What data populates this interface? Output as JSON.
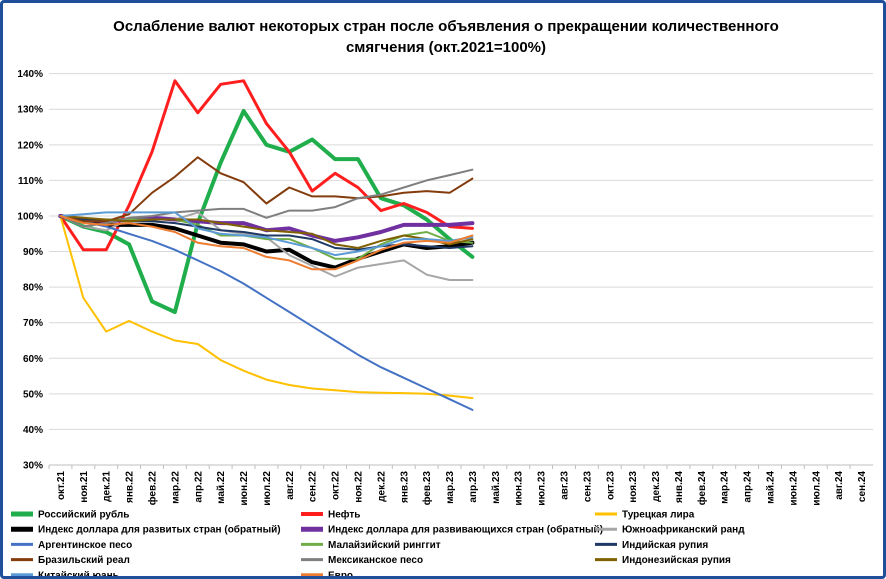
{
  "chart_data": {
    "type": "line",
    "title_lines": [
      "Ослабление валют некоторых стран после объявления о прекращении количественного",
      "смягчения  (окт.2021=100%)"
    ],
    "x_labels": [
      "окт.21",
      "ноя.21",
      "дек.21",
      "янв.22",
      "фев.22",
      "мар.22",
      "апр.22",
      "май.22",
      "июн.22",
      "июл.22",
      "авг.22",
      "сен.22",
      "окт.22",
      "ноя.22",
      "дек.22",
      "янв.23",
      "фев.23",
      "мар.23",
      "апр.23",
      "май.23",
      "июн.23",
      "июл.23",
      "авг.23",
      "сен.23",
      "окт.23",
      "ноя.23",
      "дек.23",
      "янв.24",
      "фев.24",
      "мар.24",
      "апр.24",
      "май.24",
      "июн.24",
      "июл.24",
      "авг.24",
      "сен.24"
    ],
    "y_ticks": [
      "30%",
      "40%",
      "50%",
      "60%",
      "70%",
      "80%",
      "90%",
      "100%",
      "110%",
      "120%",
      "130%",
      "140%"
    ],
    "ylim": [
      30,
      143
    ],
    "grid": true,
    "legend_position": "bottom",
    "series": [
      {
        "name": "Российский рубль",
        "color": "#1fae4b",
        "width": 4,
        "values": [
          100,
          97,
          95.5,
          92,
          76,
          73,
          98,
          115,
          129.5,
          120,
          118,
          121.5,
          116,
          116,
          105,
          103,
          99,
          93.5,
          88.5
        ]
      },
      {
        "name": "Нефть",
        "color": "#ff1e1e",
        "width": 3,
        "values": [
          100,
          90.5,
          90.5,
          103,
          118,
          138,
          129,
          137,
          138,
          126,
          118,
          107,
          112,
          108,
          101.5,
          103.5,
          101,
          97,
          96.5
        ]
      },
      {
        "name": "Турецкая лира",
        "color": "#ffc000",
        "width": 2,
        "values": [
          100,
          77,
          67.5,
          70.5,
          67.5,
          65,
          64,
          59.5,
          56.5,
          54,
          52.5,
          51.5,
          51,
          50.5,
          50.3,
          50.2,
          50,
          49.5,
          48.8
        ]
      },
      {
        "name": "Индекс доллара для развитых стран (обратный)",
        "color": "#000000",
        "width": 4,
        "values": [
          100,
          98.5,
          97.5,
          97.5,
          97.5,
          96.5,
          94.5,
          92.5,
          92,
          90,
          90.5,
          87,
          85.5,
          88,
          90,
          92,
          91,
          91.5,
          92.5
        ]
      },
      {
        "name": "Индекс доллара для развивающихся стран (обратный)",
        "color": "#7030a0",
        "width": 4,
        "values": [
          100,
          99,
          98.5,
          99,
          99.5,
          99,
          98.5,
          98,
          98,
          96,
          96.5,
          94.5,
          93,
          94,
          95.5,
          97.5,
          97.5,
          97.5,
          98
        ]
      },
      {
        "name": "Южноафриканский ранд",
        "color": "#a6a6a6",
        "width": 2,
        "values": [
          100,
          97,
          96,
          99,
          99,
          99,
          101,
          96,
          95,
          94,
          89,
          86,
          83,
          85.5,
          86.5,
          87.5,
          83.5,
          82,
          82
        ]
      },
      {
        "name": "Аргентинское песо",
        "color": "#4472c4",
        "width": 2,
        "values": [
          100,
          98.5,
          97,
          95,
          93,
          90.5,
          87.5,
          84.5,
          81,
          77,
          73,
          69,
          65,
          61,
          57.5,
          54.5,
          51.5,
          48.5,
          45.5
        ]
      },
      {
        "name": "Малайзийский ринггит",
        "color": "#70ad47",
        "width": 2,
        "values": [
          100,
          99,
          99,
          99,
          99,
          99,
          97.5,
          94.5,
          94.5,
          93.5,
          93.5,
          91,
          88,
          88,
          92,
          94.5,
          95.5,
          93,
          92.5
        ]
      },
      {
        "name": "Индийская рупия",
        "color": "#1f3864",
        "width": 2,
        "values": [
          100,
          99,
          99,
          98.5,
          98.5,
          98,
          97,
          96,
          95.5,
          94.5,
          94.5,
          93.5,
          91,
          90.5,
          91.5,
          92,
          91.5,
          91,
          91.5
        ]
      },
      {
        "name": "Бразильский реал",
        "color": "#843c0c",
        "width": 2,
        "values": [
          100,
          98.5,
          98.5,
          100.5,
          106.5,
          111,
          116.5,
          112,
          109.5,
          103.5,
          108,
          105.5,
          105.5,
          105,
          105.5,
          106.5,
          107,
          106.5,
          110.5
        ]
      },
      {
        "name": "Мексиканское песо",
        "color": "#7f7f7f",
        "width": 2,
        "values": [
          100,
          97,
          98,
          99.5,
          100,
          101,
          101.5,
          102,
          102,
          99.5,
          101.5,
          101.5,
          102.5,
          105,
          106,
          108,
          110,
          111.5,
          113
        ]
      },
      {
        "name": "Индонезийская рупия",
        "color": "#806000",
        "width": 2,
        "values": [
          100,
          99.5,
          99,
          98.5,
          99,
          99,
          99,
          98,
          97,
          96,
          95.5,
          95,
          92,
          91,
          93,
          94.5,
          93.5,
          92,
          93.5
        ]
      },
      {
        "name": "Китайский юань",
        "color": "#5b9bd5",
        "width": 2,
        "values": [
          100,
          100.5,
          101,
          101,
          101,
          101,
          96.5,
          95,
          94.5,
          94,
          92.5,
          91,
          89,
          90,
          91.5,
          93.5,
          93.5,
          93,
          94
        ]
      },
      {
        "name": "Евро",
        "color": "#ed7d31",
        "width": 2,
        "values": [
          100,
          98,
          97.5,
          98,
          97,
          95.5,
          92.5,
          91.5,
          91,
          88.5,
          87.5,
          85,
          85,
          87.5,
          90.5,
          92.5,
          93,
          92.5,
          94.5
        ]
      }
    ]
  }
}
